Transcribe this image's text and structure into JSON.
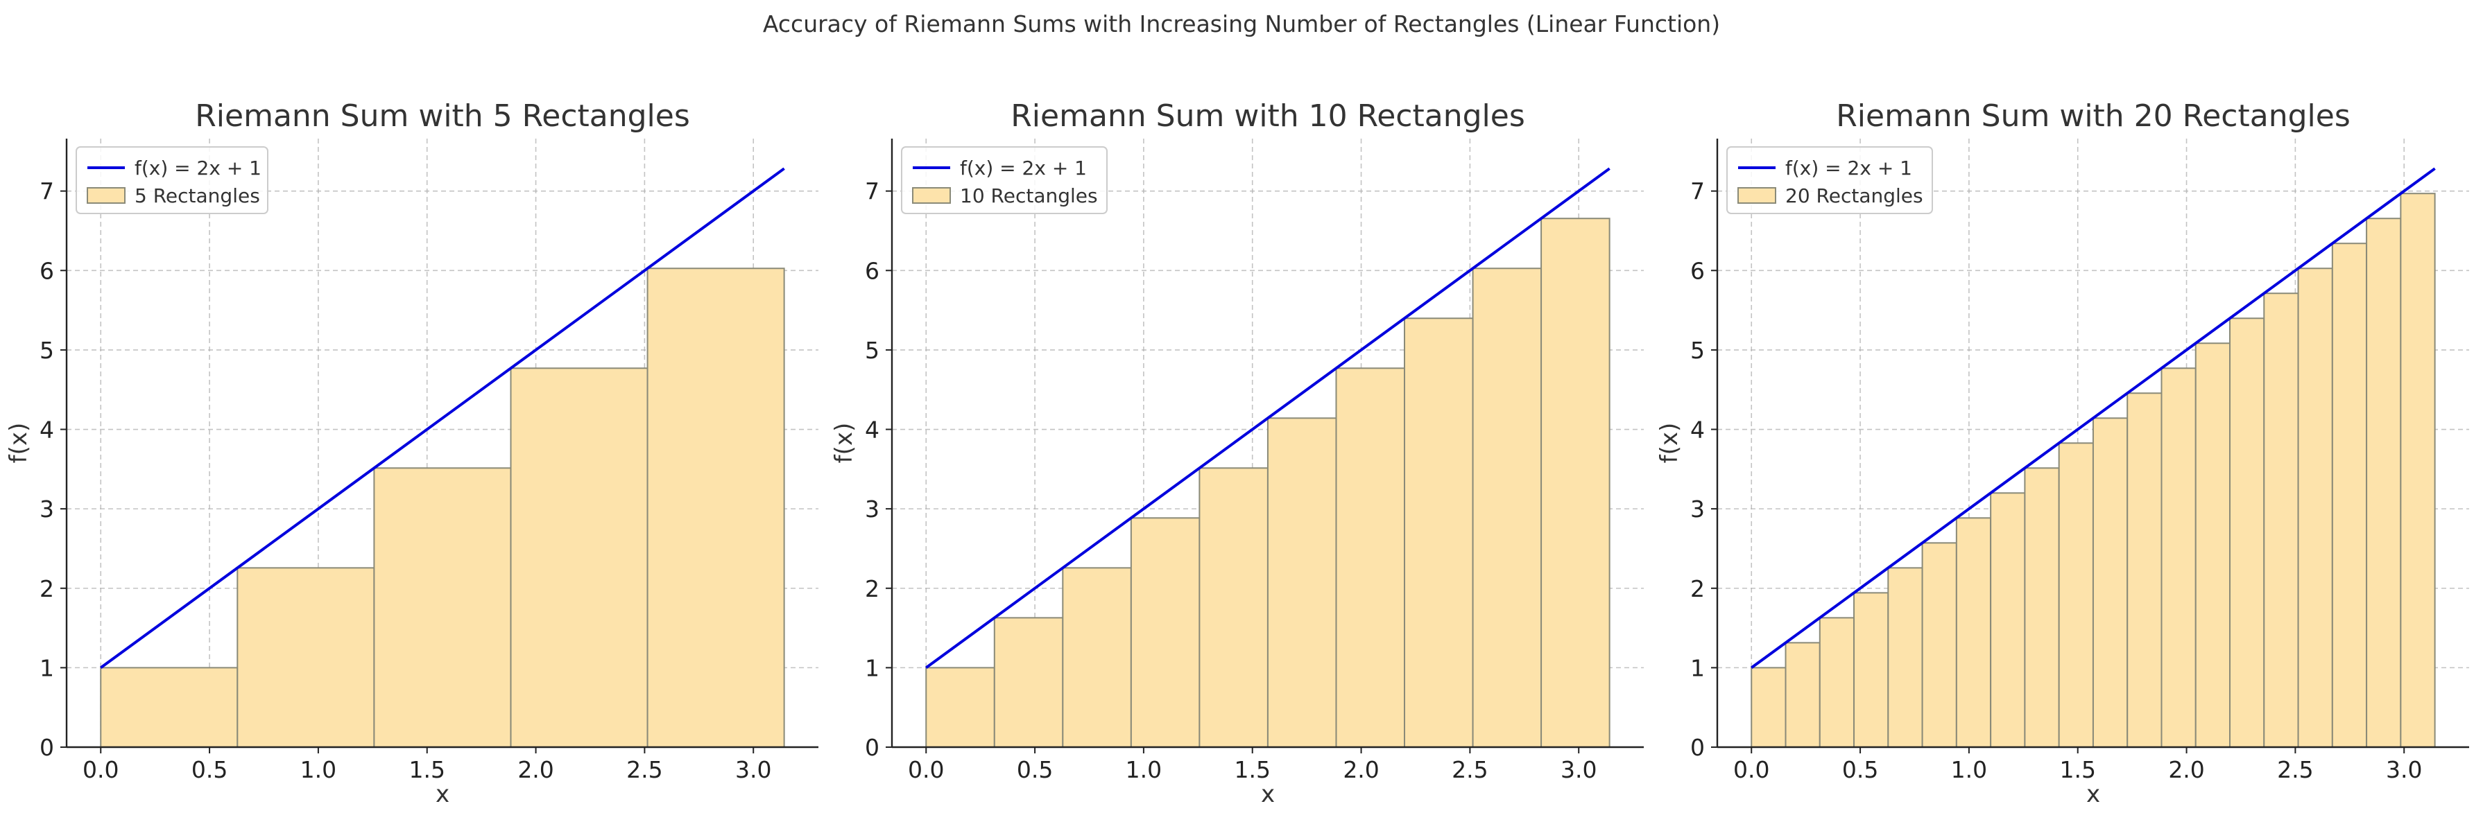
{
  "figure": {
    "suptitle": "Accuracy of Riemann Sums with Increasing Number of Rectangles (Linear Function)"
  },
  "colors": {
    "line": "#0000dd",
    "bar_fill": "#fde3ab",
    "bar_edge": "#8a8a78"
  },
  "chart_data": [
    {
      "type": "bar",
      "title": "Riemann Sum with 5 Rectangles",
      "xlabel": "x",
      "ylabel": "f(x)",
      "xlim": [
        -0.157,
        3.299
      ],
      "ylim": [
        0,
        7.66
      ],
      "xticks": [
        0.0,
        0.5,
        1.0,
        1.5,
        2.0,
        2.5,
        3.0
      ],
      "xtick_labels": [
        "0.0",
        "0.5",
        "1.0",
        "1.5",
        "2.0",
        "2.5",
        "3.0"
      ],
      "yticks": [
        0,
        1,
        2,
        3,
        4,
        5,
        6,
        7
      ],
      "ytick_labels": [
        "0",
        "1",
        "2",
        "3",
        "4",
        "5",
        "6",
        "7"
      ],
      "grid": true,
      "legend_position": "top-left",
      "function_series": {
        "name": "f(x) = 2x + 1",
        "x": [
          0,
          3.1416
        ],
        "y": [
          1,
          7.2832
        ]
      },
      "rect_series_name": "5 Rectangles",
      "rect_width": 0.6283,
      "x_left": [
        0,
        0.6283,
        1.2566,
        1.885,
        2.5133
      ],
      "heights": [
        1,
        2.2566,
        3.5133,
        4.7699,
        6.0265
      ]
    },
    {
      "type": "bar",
      "title": "Riemann Sum with 10 Rectangles",
      "xlabel": "x",
      "ylabel": "f(x)",
      "xlim": [
        -0.157,
        3.299
      ],
      "ylim": [
        0,
        7.66
      ],
      "xticks": [
        0.0,
        0.5,
        1.0,
        1.5,
        2.0,
        2.5,
        3.0
      ],
      "xtick_labels": [
        "0.0",
        "0.5",
        "1.0",
        "1.5",
        "2.0",
        "2.5",
        "3.0"
      ],
      "yticks": [
        0,
        1,
        2,
        3,
        4,
        5,
        6,
        7
      ],
      "ytick_labels": [
        "0",
        "1",
        "2",
        "3",
        "4",
        "5",
        "6",
        "7"
      ],
      "grid": true,
      "legend_position": "top-left",
      "function_series": {
        "name": "f(x) = 2x + 1",
        "x": [
          0,
          3.1416
        ],
        "y": [
          1,
          7.2832
        ]
      },
      "rect_series_name": "10 Rectangles",
      "rect_width": 0.3142,
      "x_left": [
        0,
        0.3142,
        0.6283,
        0.9425,
        1.2566,
        1.5708,
        1.885,
        2.1991,
        2.5133,
        2.8274
      ],
      "heights": [
        1,
        1.6283,
        2.2566,
        2.885,
        3.5133,
        4.1416,
        4.7699,
        5.3982,
        6.0265,
        6.6549
      ]
    },
    {
      "type": "bar",
      "title": "Riemann Sum with 20 Rectangles",
      "xlabel": "x",
      "ylabel": "f(x)",
      "xlim": [
        -0.157,
        3.299
      ],
      "ylim": [
        0,
        7.66
      ],
      "xticks": [
        0.0,
        0.5,
        1.0,
        1.5,
        2.0,
        2.5,
        3.0
      ],
      "xtick_labels": [
        "0.0",
        "0.5",
        "1.0",
        "1.5",
        "2.0",
        "2.5",
        "3.0"
      ],
      "yticks": [
        0,
        1,
        2,
        3,
        4,
        5,
        6,
        7
      ],
      "ytick_labels": [
        "0",
        "1",
        "2",
        "3",
        "4",
        "5",
        "6",
        "7"
      ],
      "grid": true,
      "legend_position": "top-left",
      "function_series": {
        "name": "f(x) = 2x + 1",
        "x": [
          0,
          3.1416
        ],
        "y": [
          1,
          7.2832
        ]
      },
      "rect_series_name": "20 Rectangles",
      "rect_width": 0.1571,
      "x_left": [
        0,
        0.1571,
        0.3142,
        0.4712,
        0.6283,
        0.7854,
        0.9425,
        1.0996,
        1.2566,
        1.4137,
        1.5708,
        1.7279,
        1.885,
        2.042,
        2.1991,
        2.3562,
        2.5133,
        2.6704,
        2.8274,
        2.9845
      ],
      "heights": [
        1,
        1.3142,
        1.6283,
        1.9425,
        2.2566,
        2.5708,
        2.885,
        3.1991,
        3.5133,
        3.8274,
        4.1416,
        4.4558,
        4.7699,
        5.0841,
        5.3982,
        5.7124,
        6.0265,
        6.3407,
        6.6549,
        6.969
      ]
    }
  ]
}
